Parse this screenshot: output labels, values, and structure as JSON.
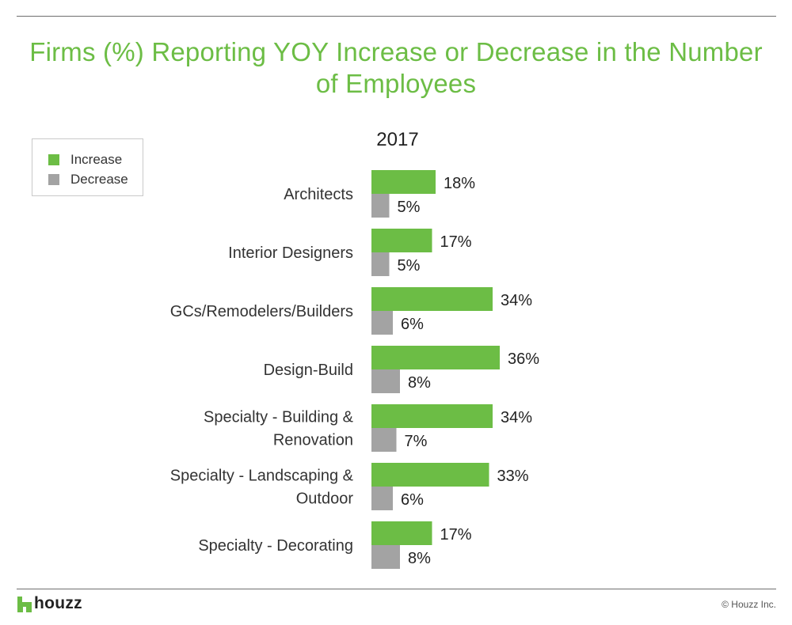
{
  "title": "Firms (%) Reporting YOY Increase or Decrease in the Number of Employees",
  "legend": {
    "items": [
      {
        "label": "Increase",
        "color": "#6cbd45"
      },
      {
        "label": "Decrease",
        "color": "#a3a3a3"
      }
    ]
  },
  "chart_data": {
    "type": "bar",
    "orientation": "horizontal",
    "title": "2017",
    "categories": [
      "Architects",
      "Interior Designers",
      "GCs/Remodelers/Builders",
      "Design-Build",
      "Specialty - Building & Renovation",
      "Specialty - Landscaping & Outdoor",
      "Specialty - Decorating"
    ],
    "category_lines": [
      [
        "Architects"
      ],
      [
        "Interior Designers"
      ],
      [
        "GCs/Remodelers/Builders"
      ],
      [
        "Design-Build"
      ],
      [
        "Specialty - Building &",
        "Renovation"
      ],
      [
        "Specialty - Landscaping &",
        "Outdoor"
      ],
      [
        "Specialty - Decorating"
      ]
    ],
    "series": [
      {
        "name": "Increase",
        "color": "#6cbd45",
        "values": [
          18,
          17,
          34,
          36,
          34,
          33,
          17
        ],
        "labels": [
          "18%",
          "17%",
          "34%",
          "36%",
          "34%",
          "33%",
          "17%"
        ]
      },
      {
        "name": "Decrease",
        "color": "#a3a3a3",
        "values": [
          5,
          5,
          6,
          8,
          7,
          6,
          8
        ],
        "labels": [
          "5%",
          "5%",
          "6%",
          "8%",
          "7%",
          "6%",
          "8%"
        ]
      }
    ],
    "value_unit": "%",
    "xlim": [
      0,
      100
    ],
    "legend_position": "top-left",
    "grid": false
  },
  "footer": {
    "brand": "houzz",
    "copyright": "© Houzz Inc."
  },
  "colors": {
    "accent": "#6cbd45",
    "decrease": "#a3a3a3"
  }
}
